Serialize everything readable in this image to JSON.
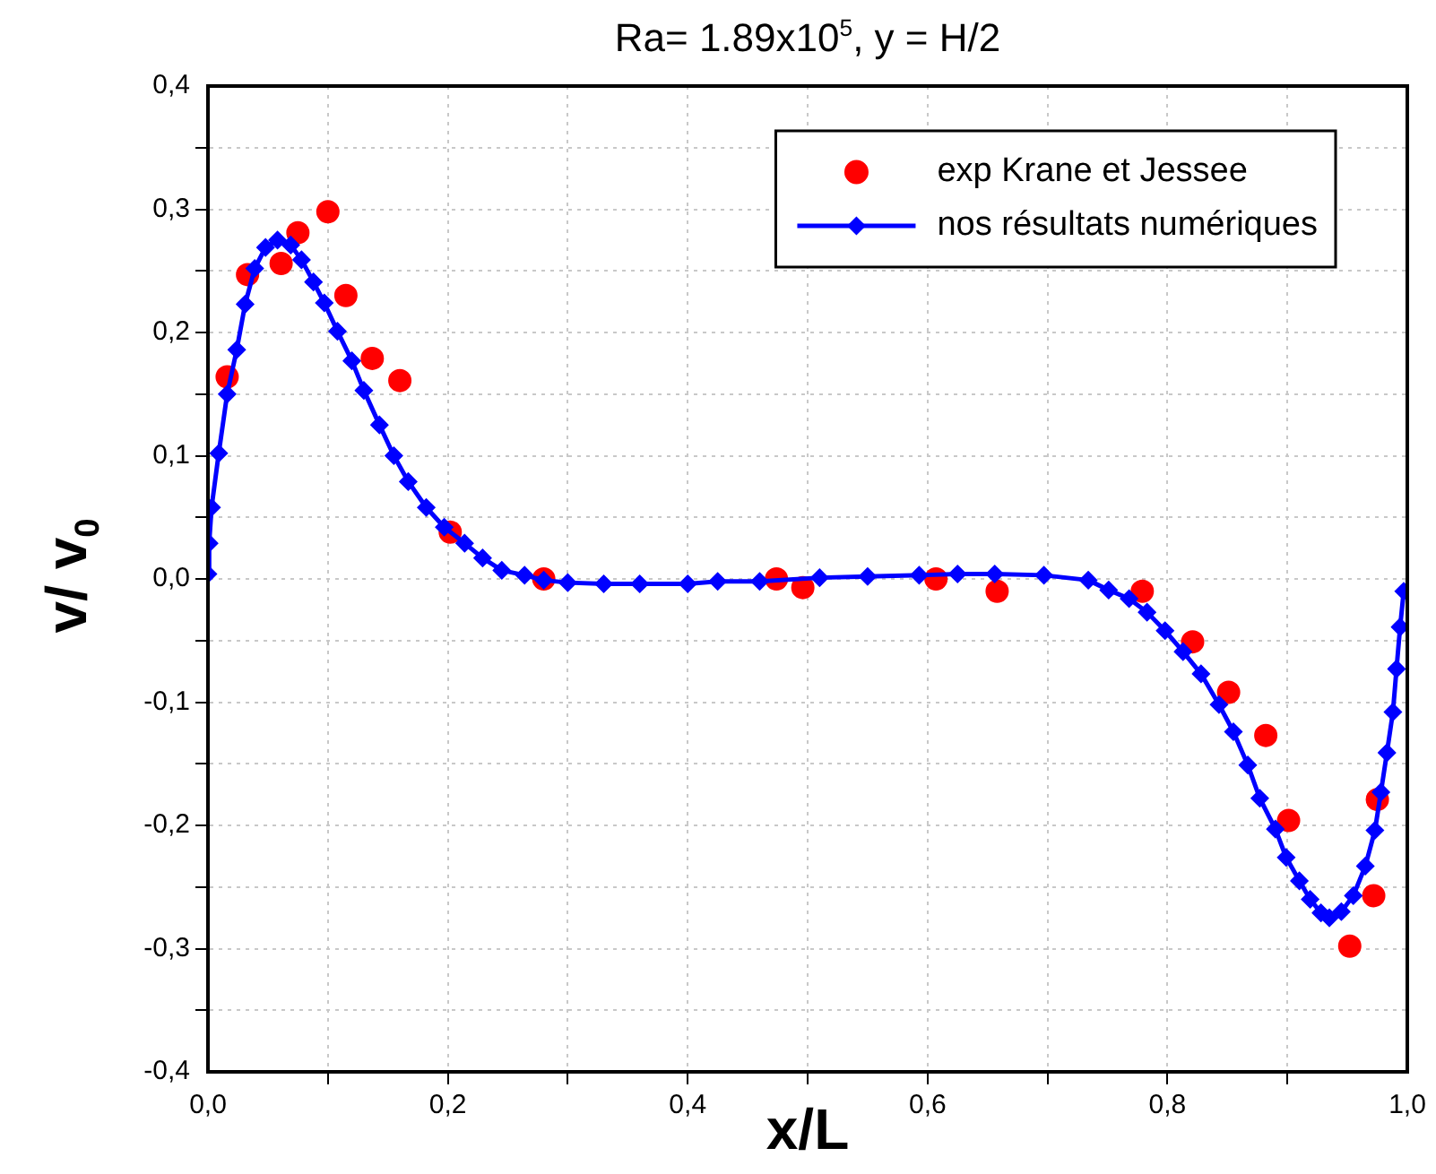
{
  "chart_data": {
    "type": "line",
    "title": "Ra= 1.89x10$^{5}$, y = H/2",
    "xlabel": "x/L",
    "ylabel": "v/ v$_{0}$",
    "xlim": [
      0,
      1
    ],
    "ylim": [
      -0.4,
      0.4
    ],
    "xticks": [
      {
        "value": 0,
        "label": "0,0"
      },
      {
        "value": 0.1,
        "label": null
      },
      {
        "value": 0.2,
        "label": "0,2"
      },
      {
        "value": 0.3,
        "label": null
      },
      {
        "value": 0.4,
        "label": "0,4"
      },
      {
        "value": 0.5,
        "label": null
      },
      {
        "value": 0.6,
        "label": "0,6"
      },
      {
        "value": 0.7,
        "label": null
      },
      {
        "value": 0.8,
        "label": "0,8"
      },
      {
        "value": 0.9,
        "label": null
      },
      {
        "value": 1,
        "label": "1,0"
      }
    ],
    "yticks": [
      {
        "value": -0.4,
        "label": "-0,4"
      },
      {
        "value": -0.35,
        "label": null
      },
      {
        "value": -0.3,
        "label": "-0,3"
      },
      {
        "value": -0.25,
        "label": null
      },
      {
        "value": -0.2,
        "label": "-0,2"
      },
      {
        "value": -0.15,
        "label": null
      },
      {
        "value": -0.1,
        "label": "-0,1"
      },
      {
        "value": -0.05,
        "label": null
      },
      {
        "value": 0,
        "label": "0,0"
      },
      {
        "value": 0.05,
        "label": null
      },
      {
        "value": 0.1,
        "label": "0,1"
      },
      {
        "value": 0.15,
        "label": null
      },
      {
        "value": 0.2,
        "label": "0,2"
      },
      {
        "value": 0.25,
        "label": null
      },
      {
        "value": 0.3,
        "label": "0,3"
      },
      {
        "value": 0.35,
        "label": null
      },
      {
        "value": 0.4,
        "label": "0,4"
      }
    ],
    "grid": true,
    "legend": "top right",
    "series": [
      {
        "name": "exp Krane et Jessee",
        "type": "scatter",
        "marker": "circle",
        "color": "#ff0000",
        "x": [
          0.016,
          0.033,
          0.061,
          0.075,
          0.1,
          0.115,
          0.137,
          0.16,
          0.202,
          0.28,
          0.474,
          0.496,
          0.607,
          0.658,
          0.779,
          0.821,
          0.851,
          0.882,
          0.901,
          0.952,
          0.972,
          0.975
        ],
        "values": [
          0.164,
          0.247,
          0.256,
          0.281,
          0.298,
          0.23,
          0.179,
          0.161,
          0.038,
          0,
          0,
          -0.007,
          0,
          -0.01,
          -0.01,
          -0.051,
          -0.092,
          -0.127,
          -0.196,
          -0.298,
          -0.257,
          -0.179
        ]
      },
      {
        "name": "nos résultats numériques",
        "type": "line",
        "marker": "diamond",
        "line_style": "solid",
        "color": "#0000ff",
        "x": [
          0,
          0.001,
          0.003,
          0.009,
          0.016,
          0.024,
          0.031,
          0.039,
          0.048,
          0.058,
          0.069,
          0.078,
          0.088,
          0.097,
          0.108,
          0.12,
          0.13,
          0.143,
          0.155,
          0.167,
          0.182,
          0.197,
          0.214,
          0.229,
          0.245,
          0.264,
          0.28,
          0.3,
          0.33,
          0.36,
          0.4,
          0.425,
          0.46,
          0.51,
          0.55,
          0.593,
          0.625,
          0.656,
          0.697,
          0.734,
          0.751,
          0.768,
          0.783,
          0.798,
          0.813,
          0.828,
          0.843,
          0.855,
          0.867,
          0.877,
          0.89,
          0.899,
          0.91,
          0.919,
          0.928,
          0.935,
          0.945,
          0.955,
          0.965,
          0.973,
          0.978,
          0.983,
          0.988,
          0.991,
          0.994,
          0.997,
          1
        ],
        "values": [
          0.004,
          0.029,
          0.058,
          0.102,
          0.15,
          0.186,
          0.223,
          0.252,
          0.269,
          0.275,
          0.271,
          0.259,
          0.241,
          0.224,
          0.201,
          0.177,
          0.153,
          0.125,
          0.1,
          0.079,
          0.058,
          0.042,
          0.029,
          0.017,
          0.007,
          0.003,
          -0.001,
          -0.003,
          -0.004,
          -0.004,
          -0.004,
          -0.002,
          -0.002,
          0.001,
          0.002,
          0.003,
          0.004,
          0.004,
          0.003,
          -0.001,
          -0.009,
          -0.016,
          -0.027,
          -0.042,
          -0.059,
          -0.077,
          -0.102,
          -0.124,
          -0.151,
          -0.178,
          -0.203,
          -0.226,
          -0.245,
          -0.26,
          -0.271,
          -0.275,
          -0.27,
          -0.257,
          -0.233,
          -0.204,
          -0.173,
          -0.141,
          -0.108,
          -0.073,
          -0.039,
          -0.01,
          -0.01
        ]
      }
    ]
  }
}
